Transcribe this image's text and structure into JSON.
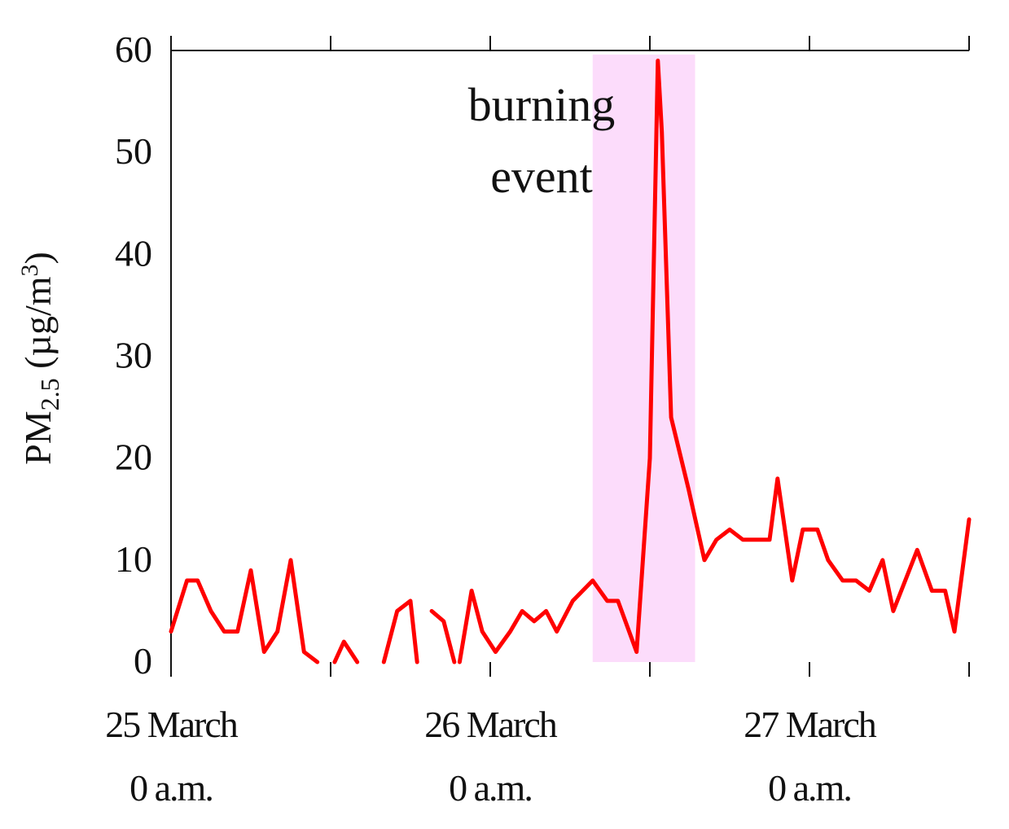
{
  "chart_data": {
    "type": "line",
    "ylabel_main": "PM",
    "ylabel_sub": "2.5",
    "ylabel_unit": " (µg/m",
    "ylabel_sup": "3",
    "ylabel_close": ")",
    "ylim": [
      0,
      60
    ],
    "yticks": [
      "0",
      "10",
      "20",
      "30",
      "40",
      "50",
      "60"
    ],
    "xlim": [
      0,
      60
    ],
    "x_major_labels": [
      {
        "x": 0,
        "line1": "25 March",
        "line2": "0 a.m."
      },
      {
        "x": 24,
        "line1": "26 March",
        "line2": "0 a.m."
      },
      {
        "x": 48,
        "line1": "27 March",
        "line2": "0 a.m."
      }
    ],
    "x_ticks": [
      0,
      12,
      24,
      36,
      48,
      60
    ],
    "highlight": {
      "x_start": 31.7,
      "x_end": 39.4,
      "label_line1": "burning",
      "label_line2": "event",
      "color": "#fcdcfb"
    },
    "series": [
      {
        "color": "#ff0000",
        "segments": [
          [
            [
              0,
              3
            ],
            [
              1.2,
              8
            ],
            [
              2,
              8
            ],
            [
              3,
              5
            ],
            [
              4,
              3
            ],
            [
              5,
              3
            ],
            [
              6,
              9
            ],
            [
              7,
              1
            ],
            [
              8,
              3
            ],
            [
              9,
              10
            ],
            [
              10,
              1
            ],
            [
              11,
              0
            ]
          ],
          [
            [
              12.3,
              0
            ],
            [
              13,
              2
            ],
            [
              14,
              0
            ]
          ],
          [
            [
              16,
              0
            ],
            [
              17,
              5
            ],
            [
              18,
              6
            ],
            [
              18.5,
              0
            ]
          ],
          [
            [
              19.6,
              5
            ],
            [
              20.5,
              4
            ],
            [
              21.3,
              0
            ]
          ],
          [
            [
              21.7,
              0
            ],
            [
              22.6,
              7
            ],
            [
              23.4,
              3
            ],
            [
              24.4,
              1
            ],
            [
              25.5,
              3
            ],
            [
              26.4,
              5
            ],
            [
              27.3,
              4
            ],
            [
              28.2,
              5
            ],
            [
              29,
              3
            ],
            [
              30.2,
              6
            ],
            [
              31.7,
              8
            ],
            [
              32.8,
              6
            ],
            [
              33.6,
              6
            ],
            [
              35,
              1
            ],
            [
              36,
              20
            ],
            [
              36.6,
              59
            ],
            [
              36.9,
              52
            ],
            [
              37.6,
              24
            ],
            [
              38.9,
              17
            ],
            [
              40.1,
              10
            ],
            [
              41,
              12
            ],
            [
              42,
              13
            ],
            [
              43,
              12
            ],
            [
              44,
              12
            ],
            [
              45,
              12
            ],
            [
              45.6,
              18
            ],
            [
              46.7,
              8
            ],
            [
              47.5,
              13
            ],
            [
              48.6,
              13
            ],
            [
              49.4,
              10
            ],
            [
              50.5,
              8
            ],
            [
              51.5,
              8
            ],
            [
              52.5,
              7
            ],
            [
              53.5,
              10
            ],
            [
              54.3,
              5
            ],
            [
              55.5,
              9
            ],
            [
              56.1,
              11
            ],
            [
              57.2,
              7
            ],
            [
              58.2,
              7
            ],
            [
              58.9,
              3
            ],
            [
              60,
              14
            ]
          ]
        ]
      }
    ]
  }
}
